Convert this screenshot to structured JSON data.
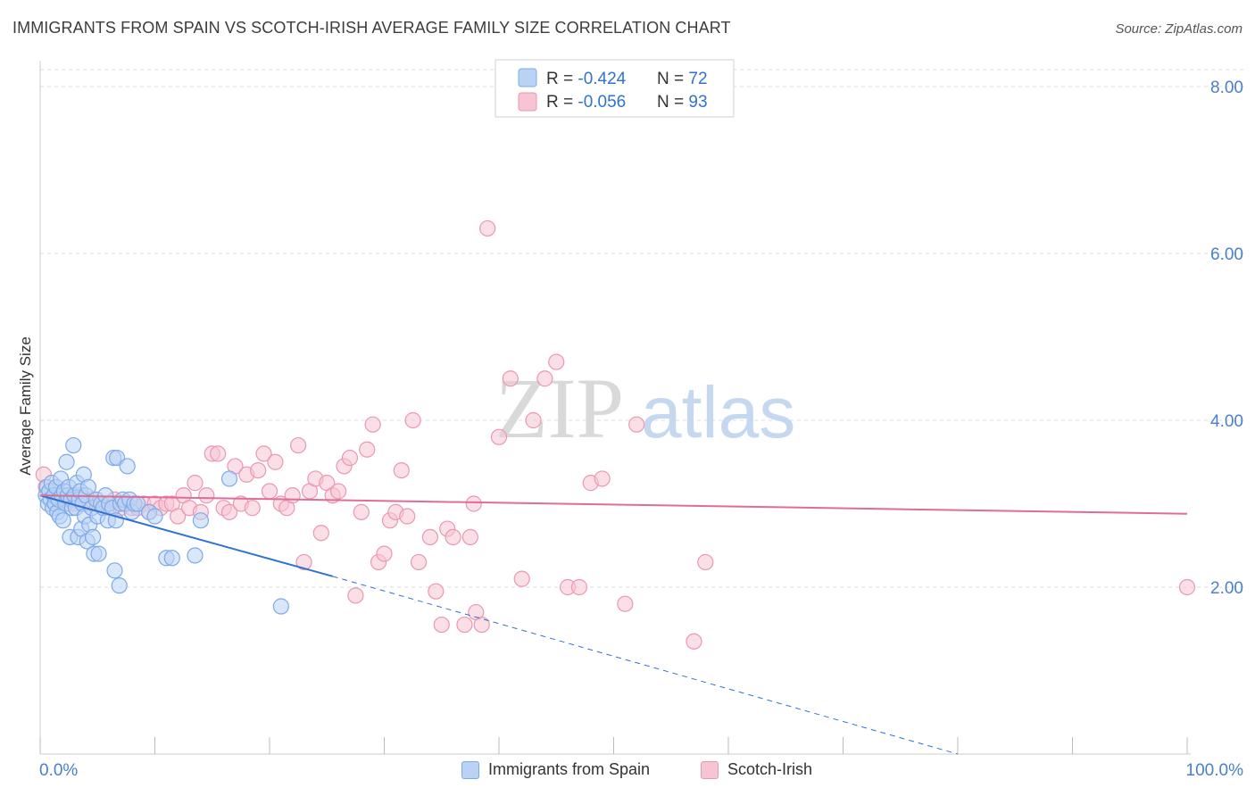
{
  "header": {
    "title": "IMMIGRANTS FROM SPAIN VS SCOTCH-IRISH AVERAGE FAMILY SIZE CORRELATION CHART",
    "source": "Source: ZipAtlas.com"
  },
  "watermark": {
    "zip": "ZIP",
    "atlas": "atlas"
  },
  "colors": {
    "blue_fill": "#b9d3f5",
    "blue_stroke": "#7fa9e6",
    "blue_line": "#2f72d0",
    "pink_fill": "#f7c4d4",
    "pink_stroke": "#ea97b2",
    "pink_line": "#e06d97",
    "grid": "#dddddd",
    "tick_label": "#4a7fcf"
  },
  "legend_top": {
    "rows": [
      {
        "r_label": "R = ",
        "r_value": "-0.424",
        "n_label": "N = ",
        "n_value": "72"
      },
      {
        "r_label": "R = ",
        "r_value": "-0.056",
        "n_label": "N = ",
        "n_value": "93"
      }
    ]
  },
  "chart_data": {
    "type": "scatter",
    "title": "IMMIGRANTS FROM SPAIN VS SCOTCH-IRISH AVERAGE FAMILY SIZE CORRELATION CHART",
    "xlabel": "",
    "ylabel": "Average Family Size",
    "xlim": [
      0,
      100
    ],
    "ylim": [
      0,
      8.3
    ],
    "x_tick_labels": [
      "0.0%",
      "100.0%"
    ],
    "y_ticks": [
      2.0,
      4.0,
      6.0,
      8.0
    ],
    "y_tick_labels": [
      "2.00",
      "4.00",
      "6.00",
      "8.00"
    ],
    "grid": "horizontal dashed",
    "legend": "top-center and bottom",
    "series": [
      {
        "name": "Immigrants from Spain",
        "stats": {
          "R": -0.424,
          "N": 72
        },
        "trend": {
          "x_start": 0,
          "y_start": 3.1,
          "x_solid_end": 25.5,
          "y_solid_end": 2.13,
          "x_end": 80,
          "y_end": 0.0
        },
        "points": [
          [
            0.5,
            3.1
          ],
          [
            0.6,
            3.2
          ],
          [
            0.7,
            3.0
          ],
          [
            0.8,
            3.15
          ],
          [
            0.9,
            3.05
          ],
          [
            1.0,
            3.25
          ],
          [
            1.1,
            2.95
          ],
          [
            1.2,
            3.1
          ],
          [
            1.3,
            3.0
          ],
          [
            1.4,
            3.2
          ],
          [
            1.5,
            2.9
          ],
          [
            1.6,
            3.05
          ],
          [
            1.7,
            2.85
          ],
          [
            1.8,
            3.3
          ],
          [
            1.9,
            3.1
          ],
          [
            2.0,
            2.8
          ],
          [
            2.1,
            3.15
          ],
          [
            2.2,
            3.0
          ],
          [
            2.3,
            3.5
          ],
          [
            2.4,
            3.1
          ],
          [
            2.5,
            3.2
          ],
          [
            2.6,
            2.6
          ],
          [
            2.7,
            3.05
          ],
          [
            2.8,
            2.95
          ],
          [
            2.9,
            3.7
          ],
          [
            3.0,
            3.1
          ],
          [
            3.1,
            2.95
          ],
          [
            3.2,
            3.25
          ],
          [
            3.3,
            2.6
          ],
          [
            3.4,
            3.05
          ],
          [
            3.5,
            3.15
          ],
          [
            3.6,
            2.7
          ],
          [
            3.7,
            3.0
          ],
          [
            3.8,
            3.35
          ],
          [
            3.9,
            2.85
          ],
          [
            4.0,
            3.1
          ],
          [
            4.1,
            2.55
          ],
          [
            4.2,
            3.2
          ],
          [
            4.3,
            2.75
          ],
          [
            4.5,
            2.95
          ],
          [
            4.6,
            2.6
          ],
          [
            4.7,
            2.4
          ],
          [
            4.9,
            3.05
          ],
          [
            5.0,
            2.85
          ],
          [
            5.1,
            2.4
          ],
          [
            5.3,
            3.0
          ],
          [
            5.5,
            2.95
          ],
          [
            5.7,
            3.1
          ],
          [
            5.9,
            2.8
          ],
          [
            6.0,
            3.0
          ],
          [
            6.3,
            2.95
          ],
          [
            6.4,
            3.55
          ],
          [
            6.5,
            2.2
          ],
          [
            6.6,
            2.8
          ],
          [
            6.7,
            3.55
          ],
          [
            6.9,
            2.02
          ],
          [
            7.0,
            3.0
          ],
          [
            7.2,
            3.05
          ],
          [
            7.4,
            3.0
          ],
          [
            7.6,
            3.45
          ],
          [
            7.8,
            3.05
          ],
          [
            8.0,
            2.9
          ],
          [
            8.2,
            3.0
          ],
          [
            8.5,
            3.0
          ],
          [
            9.5,
            2.9
          ],
          [
            10.0,
            2.85
          ],
          [
            11.0,
            2.35
          ],
          [
            11.5,
            2.35
          ],
          [
            13.5,
            2.38
          ],
          [
            14.0,
            2.8
          ],
          [
            16.5,
            3.3
          ],
          [
            21.0,
            1.77
          ]
        ]
      },
      {
        "name": "Scotch-Irish",
        "stats": {
          "R": -0.056,
          "N": 93
        },
        "trend": {
          "x_start": 0,
          "y_start": 3.1,
          "x_end": 100,
          "y_end": 2.88
        },
        "points": [
          [
            0.3,
            3.35
          ],
          [
            0.5,
            3.2
          ],
          [
            1.0,
            3.15
          ],
          [
            1.5,
            3.1
          ],
          [
            2.0,
            3.05
          ],
          [
            2.5,
            3.0
          ],
          [
            3.0,
            3.0
          ],
          [
            3.5,
            3.1
          ],
          [
            4.0,
            3.0
          ],
          [
            4.5,
            3.05
          ],
          [
            5.0,
            3.0
          ],
          [
            5.5,
            3.0
          ],
          [
            6.0,
            2.95
          ],
          [
            6.5,
            3.05
          ],
          [
            7.0,
            2.95
          ],
          [
            7.5,
            3.0
          ],
          [
            8.0,
            2.95
          ],
          [
            8.5,
            2.95
          ],
          [
            9.0,
            3.0
          ],
          [
            9.5,
            2.9
          ],
          [
            10.0,
            3.0
          ],
          [
            10.5,
            2.95
          ],
          [
            11.0,
            3.0
          ],
          [
            11.5,
            3.0
          ],
          [
            12.0,
            2.85
          ],
          [
            12.5,
            3.1
          ],
          [
            13.0,
            2.95
          ],
          [
            13.5,
            3.25
          ],
          [
            14.0,
            2.9
          ],
          [
            14.5,
            3.1
          ],
          [
            15.0,
            3.6
          ],
          [
            15.5,
            3.6
          ],
          [
            16.0,
            2.95
          ],
          [
            16.5,
            2.9
          ],
          [
            17.0,
            3.45
          ],
          [
            17.5,
            3.0
          ],
          [
            18.0,
            3.35
          ],
          [
            18.5,
            2.95
          ],
          [
            19.0,
            3.4
          ],
          [
            19.5,
            3.6
          ],
          [
            20.0,
            3.15
          ],
          [
            20.5,
            3.5
          ],
          [
            21.0,
            3.0
          ],
          [
            21.5,
            2.95
          ],
          [
            22.0,
            3.1
          ],
          [
            22.5,
            3.7
          ],
          [
            23.0,
            2.3
          ],
          [
            23.5,
            3.15
          ],
          [
            24.0,
            3.3
          ],
          [
            24.5,
            2.65
          ],
          [
            25.0,
            3.25
          ],
          [
            25.5,
            3.1
          ],
          [
            26.0,
            3.15
          ],
          [
            26.5,
            3.45
          ],
          [
            27.0,
            3.55
          ],
          [
            27.5,
            1.9
          ],
          [
            28.0,
            2.9
          ],
          [
            28.5,
            3.65
          ],
          [
            29.0,
            3.95
          ],
          [
            29.5,
            2.3
          ],
          [
            30.0,
            2.4
          ],
          [
            30.5,
            2.8
          ],
          [
            31.0,
            2.9
          ],
          [
            31.5,
            3.4
          ],
          [
            32.0,
            2.85
          ],
          [
            32.5,
            4.0
          ],
          [
            33.0,
            2.3
          ],
          [
            34.0,
            2.6
          ],
          [
            34.5,
            1.95
          ],
          [
            35.0,
            1.55
          ],
          [
            35.5,
            2.7
          ],
          [
            36.0,
            2.6
          ],
          [
            37.0,
            1.55
          ],
          [
            37.5,
            2.6
          ],
          [
            37.8,
            3.0
          ],
          [
            38.0,
            1.7
          ],
          [
            38.5,
            1.55
          ],
          [
            39.0,
            6.3
          ],
          [
            40.0,
            3.8
          ],
          [
            41.0,
            4.5
          ],
          [
            42.0,
            2.1
          ],
          [
            43.0,
            4.0
          ],
          [
            44.0,
            4.5
          ],
          [
            45.0,
            4.7
          ],
          [
            46.0,
            2.0
          ],
          [
            47.0,
            2.0
          ],
          [
            48.0,
            3.25
          ],
          [
            49.0,
            3.3
          ],
          [
            51.0,
            1.8
          ],
          [
            52.0,
            3.95
          ],
          [
            57.0,
            1.35
          ],
          [
            58.0,
            2.3
          ],
          [
            100.0,
            2.0
          ]
        ]
      }
    ]
  }
}
